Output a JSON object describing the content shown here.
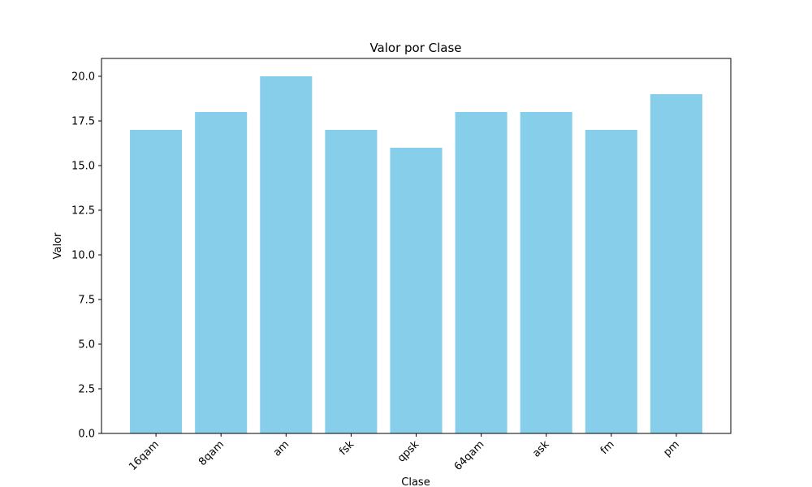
{
  "chart_data": {
    "type": "bar",
    "title": "Valor por Clase",
    "x_label": "Clase",
    "y_label": "Valor",
    "categories": [
      "16qam",
      "8qam",
      "am",
      "fsk",
      "qpsk",
      "64qam",
      "ask",
      "fm",
      "pm"
    ],
    "values": [
      17,
      18,
      20,
      17,
      16,
      18,
      18,
      17,
      19
    ],
    "color": "#87ceeb",
    "ylim": [
      0,
      21
    ],
    "yticks": [
      {
        "value": 0,
        "label": "0.0"
      },
      2.5,
      {
        "value": 5,
        "label": "5.0"
      },
      7.5,
      {
        "value": 10,
        "label": "10.0"
      },
      12.5,
      {
        "value": 15,
        "label": "15.0"
      },
      17.5,
      {
        "value": 20,
        "label": "20.0"
      }
    ],
    "grid": false
  }
}
